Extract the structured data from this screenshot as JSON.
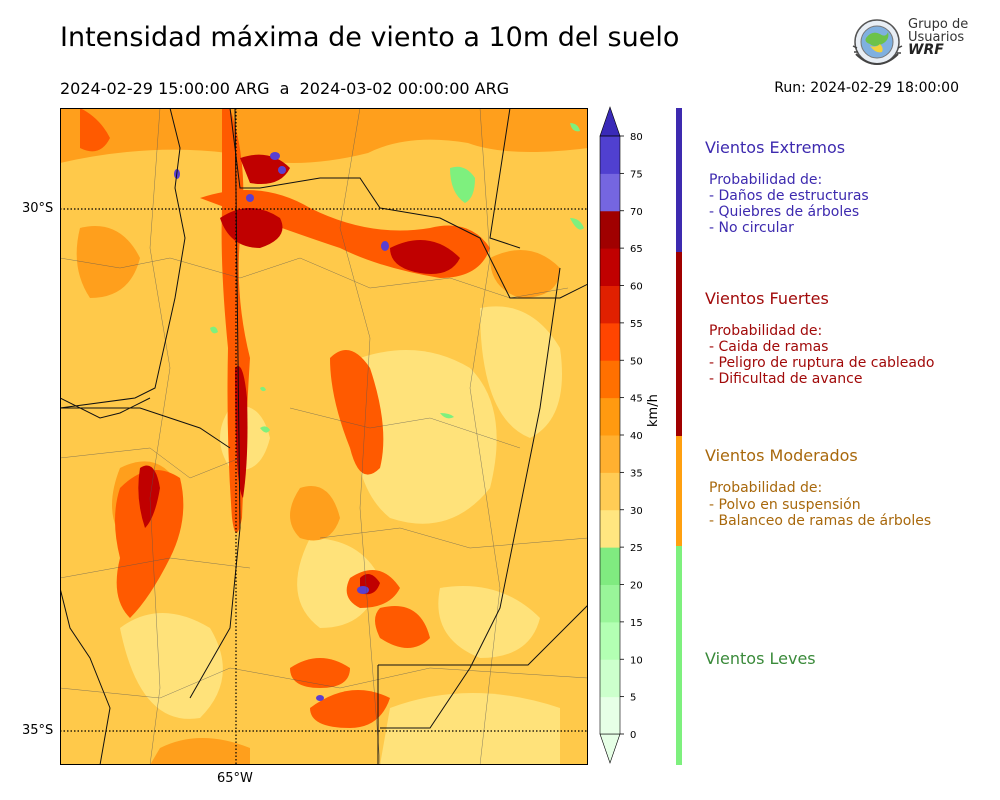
{
  "title": "Intensidad máxima de viento a 10m del suelo",
  "subtitle": "2024-02-29 15:00:00 ARG  a  2024-03-02 00:00:00 ARG",
  "run": "Run: 2024-02-29 18:00:00",
  "logo": {
    "line1": "Grupo de",
    "line2": "Usuarios",
    "line3": "WRF"
  },
  "map": {
    "lat_labels": [
      "30°S",
      "35°S"
    ],
    "lon_labels": [
      "65°W"
    ]
  },
  "colorbar": {
    "unit": "km/h",
    "ticks": [
      "0",
      "5",
      "10",
      "15",
      "20",
      "25",
      "30",
      "35",
      "40",
      "45",
      "50",
      "55",
      "60",
      "65",
      "70",
      "75",
      "80"
    ],
    "colors": [
      "#e6ffe6",
      "#ccffcc",
      "#b3ffb3",
      "#99f599",
      "#80eb80",
      "#ffe680",
      "#ffcc55",
      "#ffb030",
      "#ff9a10",
      "#ff7000",
      "#ff4500",
      "#e02000",
      "#c00000",
      "#a00000",
      "#7566e0",
      "#5040d0",
      "#3a2ab8"
    ]
  },
  "categories": [
    {
      "title": "Vientos Extremos",
      "color": "#3d2aaf",
      "bar": "#3d2aaf",
      "prob": "Probabilidad de:",
      "items": [
        "- Daños de estructuras",
        "- Quiebres de árboles",
        "- No circular"
      ]
    },
    {
      "title": "Vientos Fuertes",
      "color": "#a10a0a",
      "bar": "#a00000",
      "prob": "Probabilidad de:",
      "items": [
        "- Caida de ramas",
        "- Peligro de ruptura de cableado",
        "- Dificultad de avance"
      ]
    },
    {
      "title": "Vientos Moderados",
      "color": "#a8680c",
      "bar": "#ffa010",
      "prob": "Probabilidad de:",
      "items": [
        "- Polvo en suspensión",
        "- Balanceo de ramas de árboles"
      ]
    },
    {
      "title": "Vientos Leves",
      "color": "#3a8a3a",
      "bar": "#7ef07e",
      "prob": "",
      "items": []
    }
  ]
}
